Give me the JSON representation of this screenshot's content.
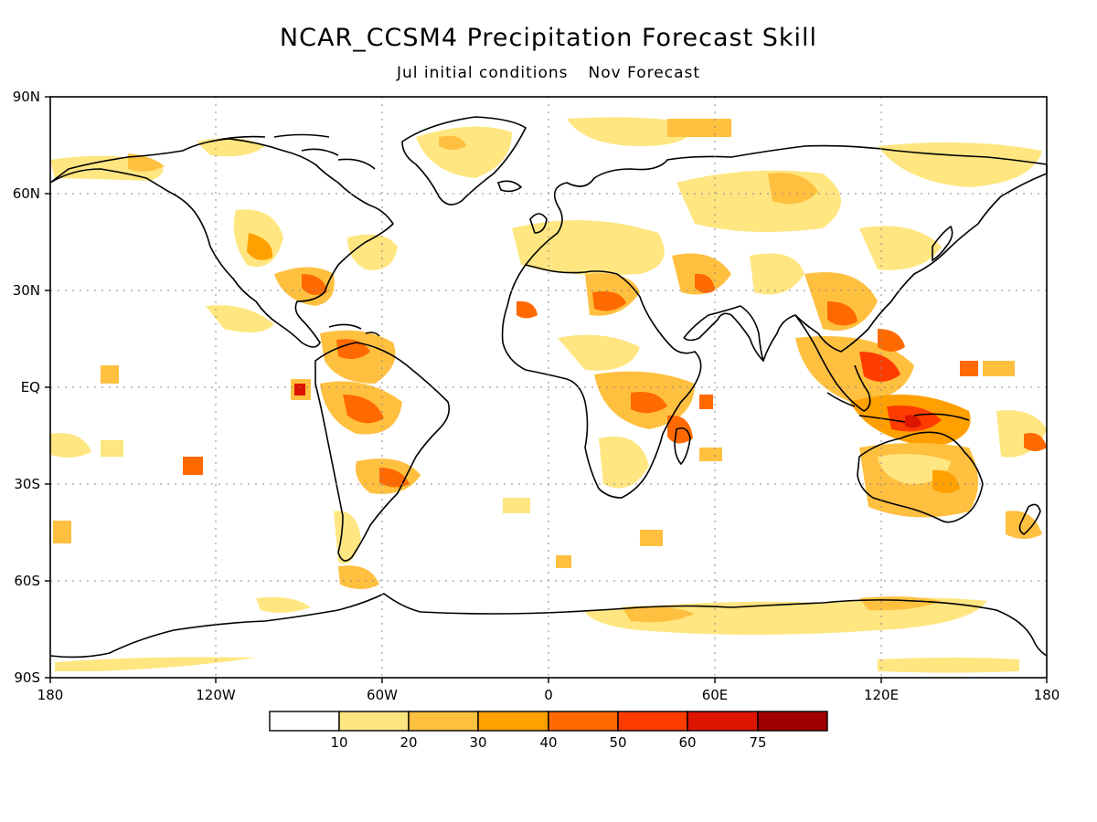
{
  "title": "NCAR_CCSM4 Precipitation Forecast Skill",
  "subtitle": {
    "left": "Jul initial conditions",
    "right": "Nov Forecast"
  },
  "axes": {
    "lon_ticks": [
      "180",
      "120W",
      "60W",
      "0",
      "60E",
      "120E",
      "180"
    ],
    "lat_ticks": [
      "90N",
      "60N",
      "30N",
      "EQ",
      "30S",
      "60S",
      "90S"
    ]
  },
  "colorbar": {
    "labels": [
      "10",
      "20",
      "30",
      "40",
      "50",
      "60",
      "75"
    ],
    "colors": [
      "#ffffff",
      "#ffe680",
      "#ffc040",
      "#ffa000",
      "#ff6a00",
      "#ff3c00",
      "#dc1400",
      "#a00000"
    ]
  },
  "colors": {
    "coastline": "#000000",
    "grid": "#888888",
    "frame": "#000000"
  }
}
